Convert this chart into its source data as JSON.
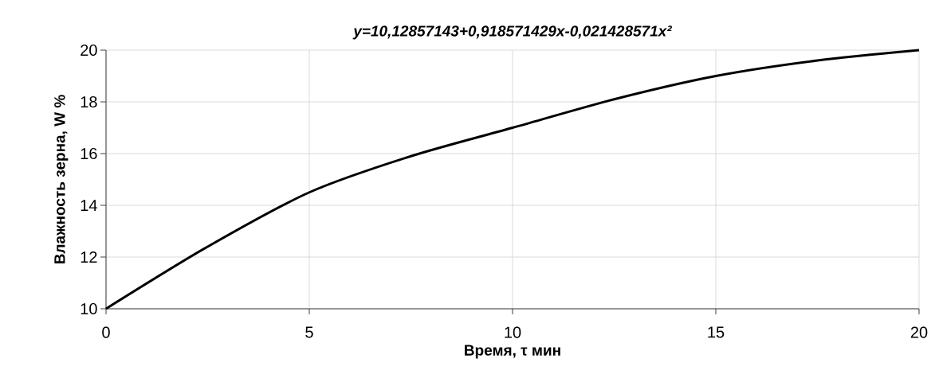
{
  "chart_data": {
    "type": "line",
    "title": "y=10,12857143+0,918571429x-0,021428571x²",
    "xlabel": "Время, τ мин",
    "ylabel": "Влажность зерна, W %",
    "x": [
      0,
      2.5,
      5,
      7.5,
      10,
      12.5,
      15,
      17.5,
      20
    ],
    "series": [
      {
        "color": "#000000",
        "values": [
          10,
          12.4,
          14.5,
          15.9,
          17,
          18.1,
          19,
          19.6,
          20
        ]
      }
    ],
    "xlim": [
      0,
      20
    ],
    "ylim": [
      10,
      20
    ],
    "xticks": [
      0,
      5,
      10,
      15,
      20
    ],
    "yticks": [
      10,
      12,
      14,
      16,
      18,
      20
    ],
    "grid": true,
    "legend": false,
    "marker": "none",
    "line_style": "solid"
  }
}
